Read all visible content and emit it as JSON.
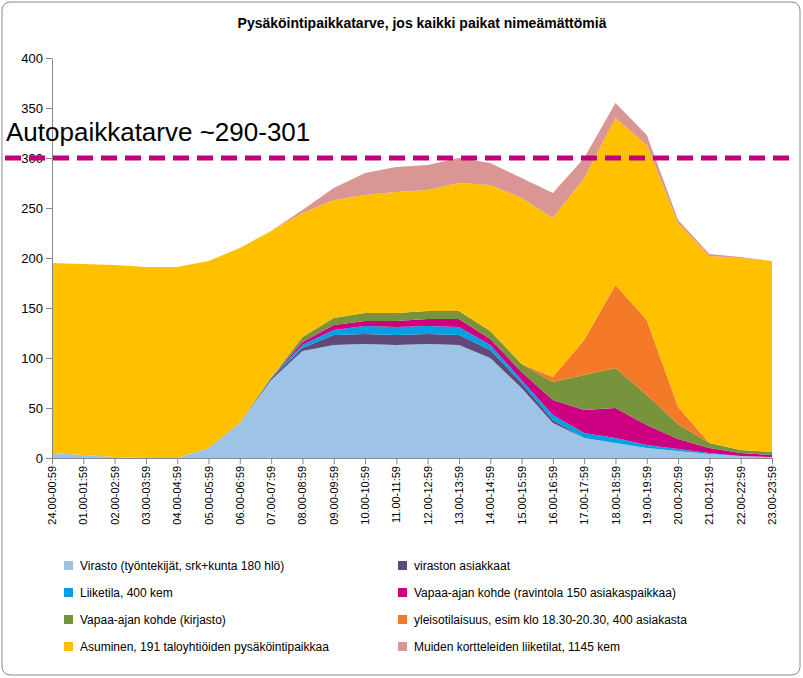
{
  "chart_data": {
    "type": "area",
    "stacked": true,
    "title": "Pysäköintipaikkatarve, jos kaikki paikat nimeämättömiä",
    "categories": [
      "24.00-00:59",
      "01.00-01:59",
      "02.00-02:59",
      "03.00-03:59",
      "04.00-04:59",
      "05.00-05:59",
      "06.00-06:59",
      "07.00-07:59",
      "08.00-08:59",
      "09.00-09:59",
      "10.00-10:59",
      "11.00-11:59",
      "12.00-12:59",
      "13.00-13:59",
      "14.00-14:59",
      "15.00-15:59",
      "16.00-16:59",
      "17.00-17:59",
      "18.00-18:59",
      "19.00-19:59",
      "20.00-20:59",
      "21.00-21:59",
      "22.00-22:59",
      "23.00-23:59"
    ],
    "series": [
      {
        "name": "Virasto (työntekijät, srk+kunta 180 hlö)",
        "color": "#9dc3e6",
        "values": [
          5,
          3,
          1,
          0,
          0,
          10,
          35,
          78,
          107,
          113,
          114,
          113,
          114,
          113,
          100,
          70,
          35,
          20,
          15,
          10,
          7,
          4,
          2,
          1
        ]
      },
      {
        "name": "viraston asiakkaat",
        "color": "#604a7b",
        "values": [
          0,
          0,
          0,
          0,
          0,
          0,
          0,
          2,
          3,
          10,
          10,
          10,
          10,
          10,
          8,
          5,
          3,
          0,
          0,
          0,
          0,
          0,
          0,
          0
        ]
      },
      {
        "name": "Liiketila, 400 kem",
        "color": "#00a0e3",
        "values": [
          0,
          0,
          0,
          0,
          0,
          0,
          0,
          0,
          3,
          5,
          8,
          8,
          8,
          8,
          5,
          3,
          5,
          5,
          5,
          3,
          2,
          1,
          0,
          0
        ]
      },
      {
        "name": "Vapaa-ajan kohde (ravintola 150 asiakaspaikkaa)",
        "color": "#cc0080",
        "values": [
          0,
          0,
          0,
          0,
          0,
          0,
          0,
          0,
          3,
          5,
          5,
          6,
          7,
          8,
          6,
          8,
          15,
          23,
          30,
          20,
          10,
          5,
          3,
          2
        ]
      },
      {
        "name": "Vapaa-ajan kohde (kirjasto)",
        "color": "#77933c",
        "values": [
          0,
          0,
          0,
          0,
          0,
          0,
          0,
          0,
          5,
          7,
          8,
          8,
          8,
          8,
          8,
          8,
          18,
          35,
          40,
          30,
          15,
          5,
          3,
          3
        ]
      },
      {
        "name": "yleisotilaisuus, esim klo 18.30-20.30, 400 asiakasta",
        "color": "#f47a2a",
        "values": [
          0,
          0,
          0,
          0,
          0,
          0,
          0,
          0,
          0,
          0,
          0,
          0,
          0,
          0,
          0,
          0,
          5,
          35,
          83,
          75,
          17,
          0,
          0,
          0
        ]
      },
      {
        "name": "Asuminen, 191 taloyhtiöiden pysäköintipaikkaa",
        "color": "#ffc000",
        "values": [
          190,
          191,
          192,
          191,
          191,
          187,
          175,
          147,
          124,
          118,
          118,
          121,
          121,
          128,
          146,
          166,
          159,
          162,
          167,
          175,
          184,
          187,
          192,
          191
        ]
      },
      {
        "name": "Muiden kortteleiden liiketilat, 1145 kem",
        "color": "#d99694",
        "values": [
          0,
          0,
          0,
          0,
          0,
          0,
          0,
          0,
          3,
          12,
          22,
          25,
          25,
          25,
          22,
          20,
          25,
          20,
          15,
          10,
          3,
          2,
          1,
          0
        ]
      }
    ],
    "ylim": [
      0,
      400
    ],
    "yticks": [
      0,
      50,
      100,
      150,
      200,
      250,
      300,
      350,
      400
    ],
    "grid": false,
    "legend": "bottom",
    "annotations": [
      {
        "text": "Autopaikkatarve ~290-301",
        "y": 300,
        "color": "#c0007a",
        "line_style": "dashed"
      }
    ]
  }
}
